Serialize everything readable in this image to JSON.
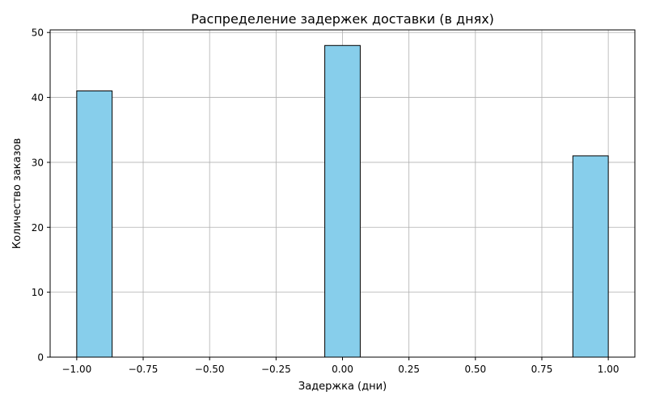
{
  "chart_data": {
    "type": "bar",
    "title": "Распределение задержек доставки (в днях)",
    "xlabel": "Задержка (дни)",
    "ylabel": "Количество заказов",
    "xlim": [
      -1.1,
      1.1
    ],
    "ylim": [
      0,
      50.4
    ],
    "xticks": [
      -1.0,
      -0.75,
      -0.5,
      -0.25,
      0.0,
      0.25,
      0.5,
      0.75,
      1.0
    ],
    "xtick_labels": [
      "−1.00",
      "−0.75",
      "−0.50",
      "−0.25",
      "0.00",
      "0.25",
      "0.50",
      "0.75",
      "1.00"
    ],
    "yticks": [
      0,
      10,
      20,
      30,
      40,
      50
    ],
    "ytick_labels": [
      "0",
      "10",
      "20",
      "30",
      "40",
      "50"
    ],
    "grid": true,
    "series": [
      {
        "bars": [
          {
            "x0": -1.0,
            "x1": -0.8667,
            "value": 41
          },
          {
            "x0": -0.0667,
            "x1": 0.0667,
            "value": 48
          },
          {
            "x0": 0.8667,
            "x1": 1.0,
            "value": 31
          }
        ]
      }
    ],
    "colors": {
      "bar_fill": "#87ceeb",
      "bar_edge": "#000000",
      "grid": "#b0b0b0"
    }
  }
}
